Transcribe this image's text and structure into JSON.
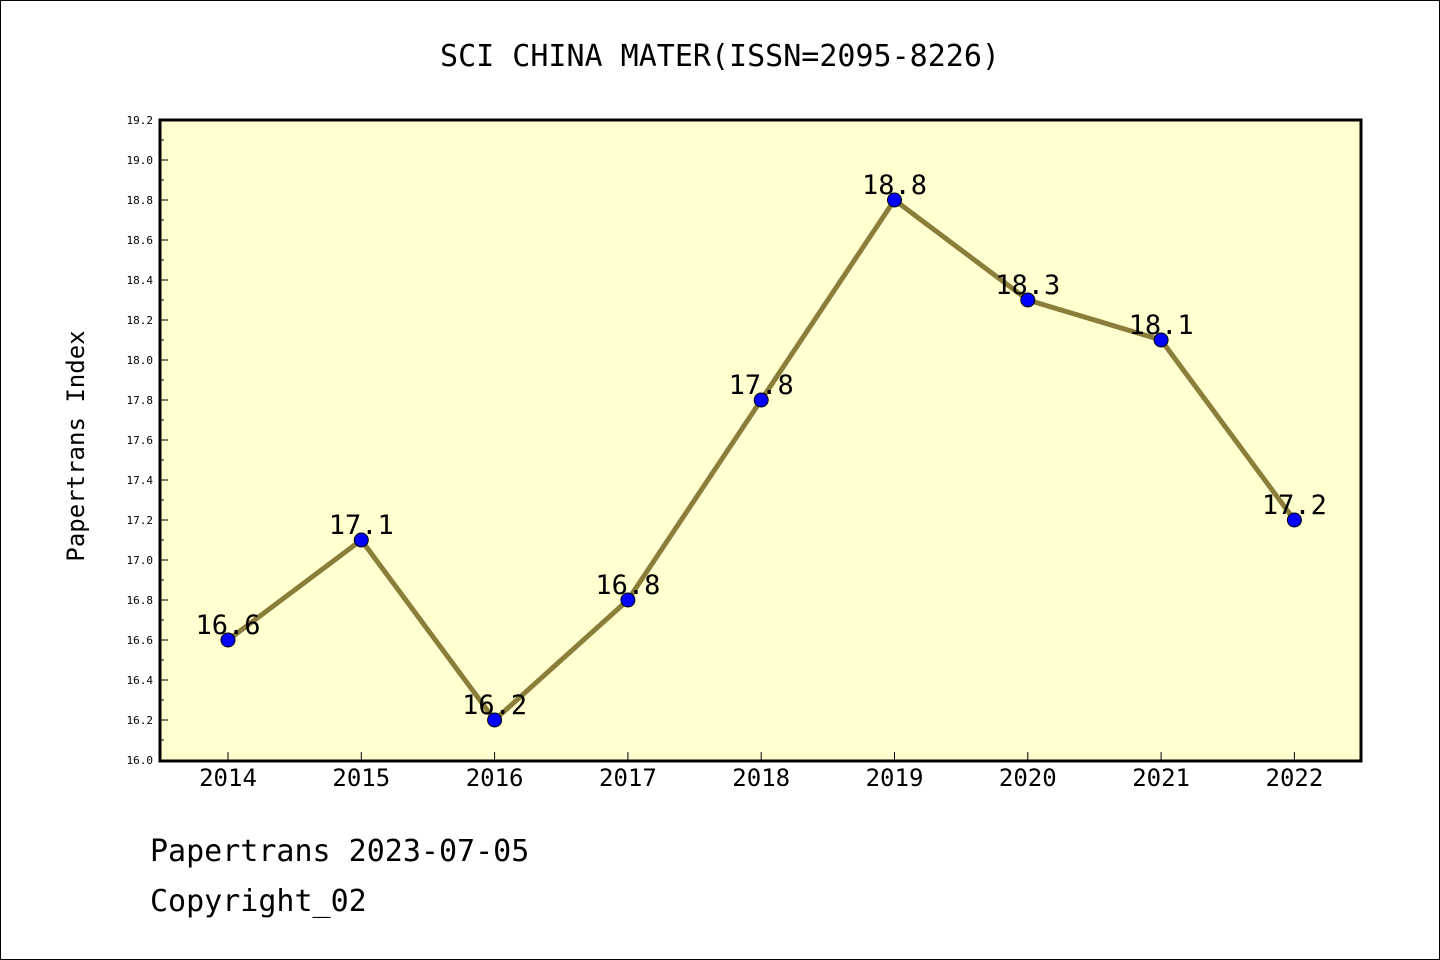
{
  "chart_data": {
    "type": "line",
    "title": "SCI CHINA MATER(ISSN=2095-8226)",
    "xlabel": "",
    "ylabel": "Papertrans Index",
    "categories": [
      "2014",
      "2015",
      "2016",
      "2017",
      "2018",
      "2019",
      "2020",
      "2021",
      "2022"
    ],
    "series": [
      {
        "values": [
          16.6,
          17.1,
          16.2,
          16.8,
          17.8,
          18.8,
          18.3,
          18.1,
          17.2
        ],
        "labels": [
          "16.6",
          "17.1",
          "16.2",
          "16.8",
          "17.8",
          "18.8",
          "18.3",
          "18.1",
          "17.2"
        ]
      }
    ],
    "ylim": [
      16.0,
      19.2
    ],
    "yticks": [
      "16.0",
      "16.2",
      "16.4",
      "16.6",
      "16.8",
      "17.0",
      "17.2",
      "17.4",
      "17.6",
      "17.8",
      "18.0",
      "18.2",
      "18.4",
      "18.6",
      "18.8",
      "19.0",
      "19.2"
    ],
    "grid": false,
    "colors": {
      "plot_background": "#ffffd0",
      "line": "#8b7d3a",
      "marker": "#0000ff"
    }
  },
  "footer": {
    "line1": "Papertrans 2023-07-05",
    "line2": "Copyright_02"
  }
}
